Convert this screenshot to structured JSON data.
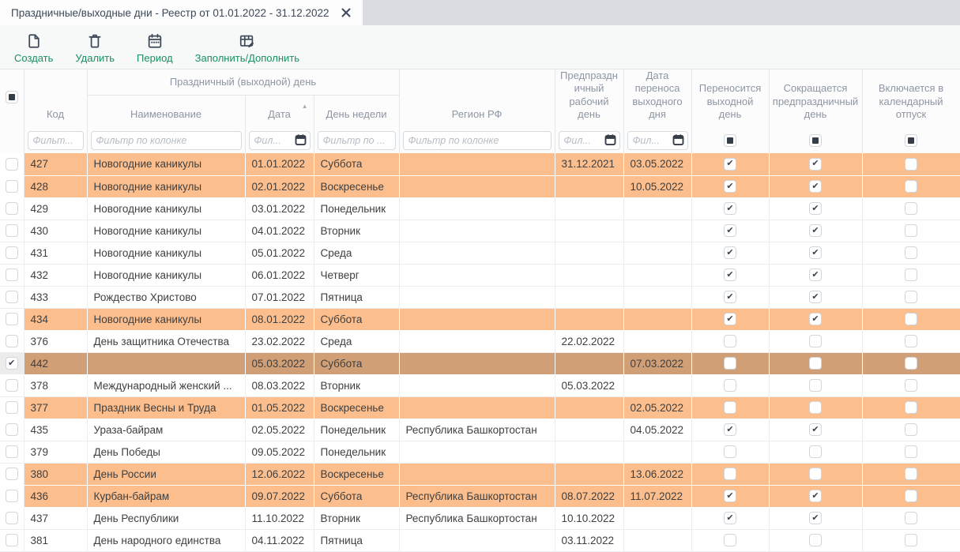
{
  "tab": {
    "title": "Праздничные/выходные дни - Реестр от 01.01.2022 - 31.12.2022"
  },
  "toolbar": {
    "buttons": [
      {
        "id": "create",
        "label": "Создать",
        "icon": "new-document-icon"
      },
      {
        "id": "delete",
        "label": "Удалить",
        "icon": "trash-icon"
      },
      {
        "id": "period",
        "label": "Период",
        "icon": "calendar-icon"
      },
      {
        "id": "fill",
        "label": "Заполнить/Дополнить",
        "icon": "table-edit-icon"
      }
    ]
  },
  "table": {
    "group_header": "Праздничный (выходной) день",
    "select_all_state": "indeterminate",
    "columns": {
      "code": "Код",
      "name": "Наименование",
      "date": "Дата",
      "weekday": "День недели",
      "region": "Регион РФ",
      "pre_holiday": "Предпраздничный рабочий день",
      "transfer_date": "Дата переноса выходного дня",
      "carry": "Переносится выходной день",
      "shorten": "Сокращается предпраздничный день",
      "vacation": "Включается в календарный отпуск"
    },
    "sort": {
      "column": "Дата",
      "direction": "asc"
    },
    "filters": {
      "code": "Фильт...",
      "name": "Фильтр по колонке",
      "date": "Фил...",
      "weekday": "Фильтр по ...",
      "region": "Фильтр по колонке",
      "pre_holiday": "Фил...",
      "transfer_date": "Фил..."
    },
    "filter_checkboxes": {
      "carry": "indeterminate",
      "shorten": "indeterminate",
      "vacation": "indeterminate"
    },
    "rows": [
      {
        "code": "427",
        "name": "Новогодние каникулы",
        "date": "01.01.2022",
        "weekday": "Суббота",
        "region": "",
        "pre_holiday": "31.12.2021",
        "transfer_date": "03.05.2022",
        "carry": true,
        "shorten": true,
        "vacation": false,
        "state": "highlight",
        "selected": false
      },
      {
        "code": "428",
        "name": "Новогодние каникулы",
        "date": "02.01.2022",
        "weekday": "Воскресенье",
        "region": "",
        "pre_holiday": "",
        "transfer_date": "10.05.2022",
        "carry": true,
        "shorten": true,
        "vacation": false,
        "state": "highlight",
        "selected": false
      },
      {
        "code": "429",
        "name": "Новогодние каникулы",
        "date": "03.01.2022",
        "weekday": "Понедельник",
        "region": "",
        "pre_holiday": "",
        "transfer_date": "",
        "carry": true,
        "shorten": true,
        "vacation": false,
        "state": "normal",
        "selected": false
      },
      {
        "code": "430",
        "name": "Новогодние каникулы",
        "date": "04.01.2022",
        "weekday": "Вторник",
        "region": "",
        "pre_holiday": "",
        "transfer_date": "",
        "carry": true,
        "shorten": true,
        "vacation": false,
        "state": "normal",
        "selected": false
      },
      {
        "code": "431",
        "name": "Новогодние каникулы",
        "date": "05.01.2022",
        "weekday": "Среда",
        "region": "",
        "pre_holiday": "",
        "transfer_date": "",
        "carry": true,
        "shorten": true,
        "vacation": false,
        "state": "normal",
        "selected": false
      },
      {
        "code": "432",
        "name": "Новогодние каникулы",
        "date": "06.01.2022",
        "weekday": "Четверг",
        "region": "",
        "pre_holiday": "",
        "transfer_date": "",
        "carry": true,
        "shorten": true,
        "vacation": false,
        "state": "normal",
        "selected": false
      },
      {
        "code": "433",
        "name": "Рождество Христово",
        "date": "07.01.2022",
        "weekday": "Пятница",
        "region": "",
        "pre_holiday": "",
        "transfer_date": "",
        "carry": true,
        "shorten": true,
        "vacation": false,
        "state": "normal",
        "selected": false
      },
      {
        "code": "434",
        "name": "Новогодние каникулы",
        "date": "08.01.2022",
        "weekday": "Суббота",
        "region": "",
        "pre_holiday": "",
        "transfer_date": "",
        "carry": true,
        "shorten": true,
        "vacation": false,
        "state": "highlight",
        "selected": false
      },
      {
        "code": "376",
        "name": "День защитника Отечества",
        "date": "23.02.2022",
        "weekday": "Среда",
        "region": "",
        "pre_holiday": "22.02.2022",
        "transfer_date": "",
        "carry": false,
        "shorten": false,
        "vacation": false,
        "state": "normal",
        "selected": false
      },
      {
        "code": "442",
        "name": "",
        "date": "05.03.2022",
        "weekday": "Суббота",
        "region": "",
        "pre_holiday": "",
        "transfer_date": "07.03.2022",
        "carry": false,
        "shorten": false,
        "vacation": false,
        "state": "selected",
        "selected": true
      },
      {
        "code": "378",
        "name": "Международный женский ...",
        "date": "08.03.2022",
        "weekday": "Вторник",
        "region": "",
        "pre_holiday": "05.03.2022",
        "transfer_date": "",
        "carry": false,
        "shorten": false,
        "vacation": false,
        "state": "normal",
        "selected": false
      },
      {
        "code": "377",
        "name": "Праздник Весны и Труда",
        "date": "01.05.2022",
        "weekday": "Воскресенье",
        "region": "",
        "pre_holiday": "",
        "transfer_date": "02.05.2022",
        "carry": false,
        "shorten": false,
        "vacation": false,
        "state": "highlight",
        "selected": false
      },
      {
        "code": "435",
        "name": "Ураза-байрам",
        "date": "02.05.2022",
        "weekday": "Понедельник",
        "region": "Республика Башкортостан",
        "pre_holiday": "",
        "transfer_date": "04.05.2022",
        "carry": true,
        "shorten": true,
        "vacation": false,
        "state": "normal",
        "selected": false
      },
      {
        "code": "379",
        "name": "День Победы",
        "date": "09.05.2022",
        "weekday": "Понедельник",
        "region": "",
        "pre_holiday": "",
        "transfer_date": "",
        "carry": false,
        "shorten": false,
        "vacation": false,
        "state": "normal",
        "selected": false
      },
      {
        "code": "380",
        "name": "День России",
        "date": "12.06.2022",
        "weekday": "Воскресенье",
        "region": "",
        "pre_holiday": "",
        "transfer_date": "13.06.2022",
        "carry": false,
        "shorten": false,
        "vacation": false,
        "state": "highlight",
        "selected": false
      },
      {
        "code": "436",
        "name": "Курбан-байрам",
        "date": "09.07.2022",
        "weekday": "Суббота",
        "region": "Республика Башкортостан",
        "pre_holiday": "08.07.2022",
        "transfer_date": "11.07.2022",
        "carry": true,
        "shorten": true,
        "vacation": false,
        "state": "highlight",
        "selected": false
      },
      {
        "code": "437",
        "name": "День Республики",
        "date": "11.10.2022",
        "weekday": "Вторник",
        "region": "Республика Башкортостан",
        "pre_holiday": "10.10.2022",
        "transfer_date": "",
        "carry": true,
        "shorten": true,
        "vacation": false,
        "state": "normal",
        "selected": false
      },
      {
        "code": "381",
        "name": "День народного единства",
        "date": "04.11.2022",
        "weekday": "Пятница",
        "region": "",
        "pre_holiday": "03.11.2022",
        "transfer_date": "",
        "carry": false,
        "shorten": false,
        "vacation": false,
        "state": "normal",
        "selected": false
      }
    ]
  },
  "colors": {
    "highlight_row": "#fbbe8c",
    "selected_row": "#d19f76",
    "accent_green": "#17915d",
    "dark_slate": "#3c4858",
    "tabstrip_bg": "#d9dce0",
    "header_text": "#8e96a3"
  }
}
